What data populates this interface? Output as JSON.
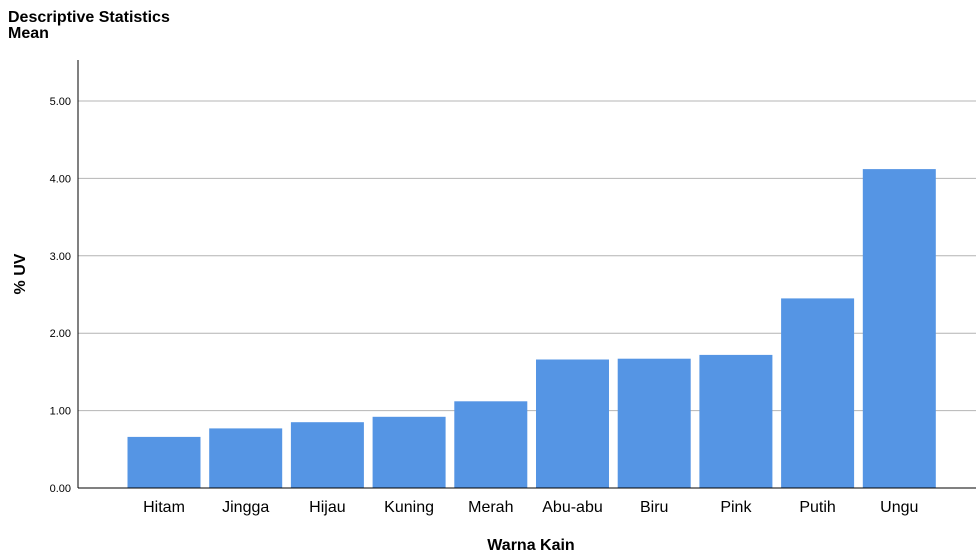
{
  "chart_data": {
    "type": "bar",
    "title": "Descriptive Statistics",
    "subtitle": "Mean",
    "xlabel": "Warna Kain",
    "ylabel": "% UV",
    "categories": [
      "Hitam",
      "Jingga",
      "Hijau",
      "Kuning",
      "Merah",
      "Abu-abu",
      "Biru",
      "Pink",
      "Putih",
      "Ungu"
    ],
    "values": [
      0.66,
      0.77,
      0.85,
      0.92,
      1.12,
      1.66,
      1.67,
      1.72,
      2.45,
      4.12
    ],
    "ylim": [
      0,
      5.5
    ],
    "yticks": [
      "0.00",
      "1.00",
      "2.00",
      "3.00",
      "4.00",
      "5.00"
    ],
    "grid": true,
    "bar_color": "#5595e4"
  }
}
